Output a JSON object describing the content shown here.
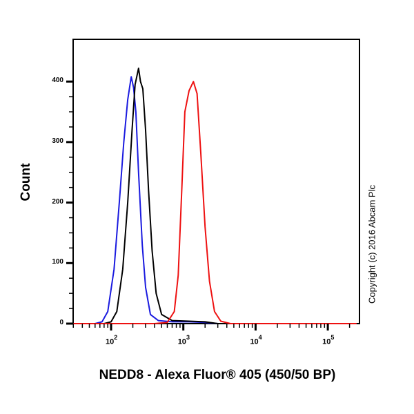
{
  "chart_data": {
    "type": "line",
    "title": "",
    "xlabel": "NEDD8 - Alexa Fluor® 405 (450/50 BP)",
    "ylabel": "Count",
    "xscale": "log",
    "xlim": [
      30,
      250000
    ],
    "ylim": [
      0,
      440
    ],
    "x_ticks": [
      {
        "value": 100,
        "label_base": "10",
        "label_exp": "2"
      },
      {
        "value": 1000,
        "label_base": "10",
        "label_exp": "3"
      },
      {
        "value": 10000,
        "label_base": "10",
        "label_exp": "4"
      },
      {
        "value": 100000,
        "label_base": "10",
        "label_exp": "5"
      }
    ],
    "y_ticks": [
      0,
      100,
      200,
      300,
      400
    ],
    "grid": false,
    "legend": null,
    "annotations": [
      "Copyright (c) 2016 Abcam Plc"
    ],
    "series": [
      {
        "name": "blue",
        "color": "#1a1adf",
        "points": [
          [
            30,
            0
          ],
          [
            60,
            0
          ],
          [
            75,
            3
          ],
          [
            90,
            20
          ],
          [
            110,
            90
          ],
          [
            130,
            200
          ],
          [
            150,
            300
          ],
          [
            170,
            370
          ],
          [
            190,
            408
          ],
          [
            205,
            390
          ],
          [
            220,
            350
          ],
          [
            240,
            250
          ],
          [
            270,
            130
          ],
          [
            300,
            60
          ],
          [
            350,
            15
          ],
          [
            450,
            5
          ],
          [
            700,
            3
          ],
          [
            1200,
            3
          ],
          [
            2000,
            2
          ],
          [
            3000,
            0
          ],
          [
            250000,
            0
          ]
        ]
      },
      {
        "name": "black",
        "color": "#000000",
        "points": [
          [
            30,
            0
          ],
          [
            80,
            0
          ],
          [
            100,
            3
          ],
          [
            120,
            20
          ],
          [
            145,
            90
          ],
          [
            170,
            200
          ],
          [
            195,
            320
          ],
          [
            215,
            395
          ],
          [
            240,
            422
          ],
          [
            255,
            400
          ],
          [
            275,
            388
          ],
          [
            300,
            320
          ],
          [
            330,
            220
          ],
          [
            370,
            120
          ],
          [
            420,
            50
          ],
          [
            500,
            15
          ],
          [
            700,
            5
          ],
          [
            1200,
            4
          ],
          [
            2000,
            3
          ],
          [
            3000,
            0
          ],
          [
            250000,
            0
          ]
        ]
      },
      {
        "name": "red",
        "color": "#ee1111",
        "points": [
          [
            30,
            0
          ],
          [
            400,
            0
          ],
          [
            600,
            2
          ],
          [
            750,
            20
          ],
          [
            850,
            80
          ],
          [
            950,
            220
          ],
          [
            1050,
            350
          ],
          [
            1200,
            385
          ],
          [
            1380,
            400
          ],
          [
            1550,
            380
          ],
          [
            1750,
            280
          ],
          [
            2000,
            160
          ],
          [
            2300,
            70
          ],
          [
            2700,
            20
          ],
          [
            3300,
            4
          ],
          [
            4500,
            0
          ],
          [
            250000,
            0
          ]
        ]
      }
    ]
  },
  "copyright": "Copyright (c) 2016 Abcam Plc"
}
